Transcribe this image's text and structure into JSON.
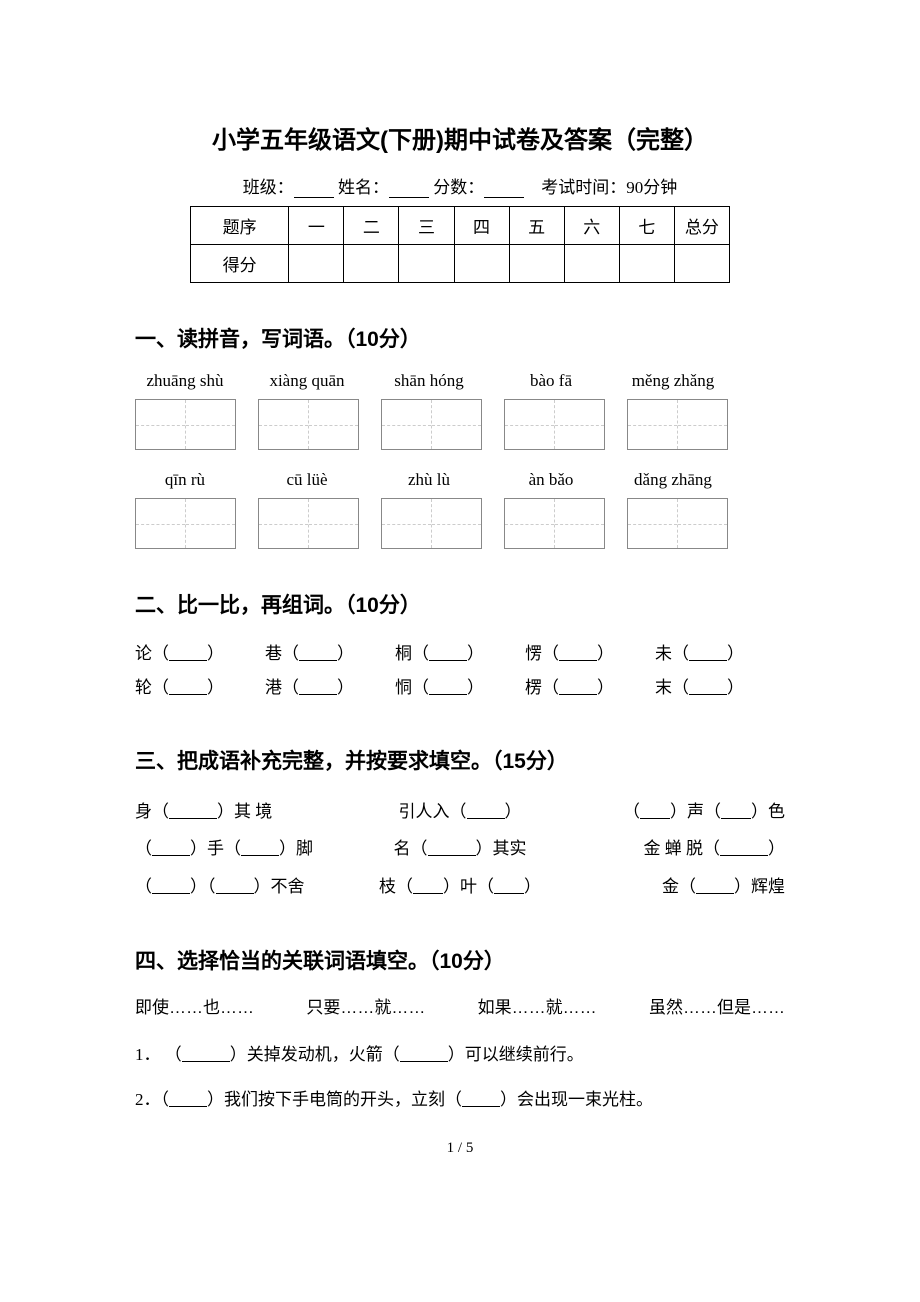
{
  "title": "小学五年级语文(下册)期中试卷及答案（完整）",
  "info": {
    "class_label": "班级：",
    "name_label": "姓名：",
    "score_label": "分数：",
    "time_label": "考试时间：90分钟"
  },
  "score_table": {
    "row1_label": "题序",
    "cols": [
      "一",
      "二",
      "三",
      "四",
      "五",
      "六",
      "七",
      "总分"
    ],
    "row2_label": "得分"
  },
  "section1": {
    "heading": "一、读拼音，写词语。（10分）",
    "row1_pinyin": [
      "zhuāng shù",
      "xiàng quān",
      "shān hóng",
      "bào fā",
      "měng zhǎng"
    ],
    "row2_pinyin": [
      "qīn rù",
      "cū lüè",
      "zhù lù",
      "àn bǎo",
      "dǎng zhāng"
    ]
  },
  "section2": {
    "heading": "二、比一比，再组词。（10分）",
    "pairs": [
      [
        "论",
        "巷",
        "桐",
        "愣",
        "未"
      ],
      [
        "轮",
        "港",
        "恫",
        "楞",
        "末"
      ]
    ]
  },
  "section3": {
    "heading": "三、把成语补充完整，并按要求填空。（15分）",
    "lines": [
      [
        {
          "pre": "身（",
          "blank": 48,
          "post": "）其 境"
        },
        {
          "pre": "引人入（",
          "blank": 38,
          "post": "）"
        },
        {
          "pre": "（",
          "blank": 30,
          "post": "）声（",
          "blank2": 30,
          "post2": "）色"
        }
      ],
      [
        {
          "pre": "（",
          "blank": 38,
          "post": "）手（",
          "blank2": 38,
          "post2": "）脚"
        },
        {
          "pre": "名（",
          "blank": 48,
          "post": "）其实"
        },
        {
          "pre": "金 蝉 脱（",
          "blank": 48,
          "post": "）"
        }
      ],
      [
        {
          "pre": "（",
          "blank": 38,
          "post": "）（",
          "blank2": 38,
          "post2": "）不舍"
        },
        {
          "pre": "枝（",
          "blank": 30,
          "post": "）叶（",
          "blank2": 30,
          "post2": "）"
        },
        {
          "pre": "金（",
          "blank": 38,
          "post": "）辉煌"
        }
      ]
    ]
  },
  "section4": {
    "heading": "四、选择恰当的关联词语填空。（10分）",
    "options": [
      "即使……也……",
      "只要……就……",
      "如果……就……",
      "虽然……但是……"
    ],
    "q1_num": "1．",
    "q1_pre": "（",
    "q1_mid1": "）关掉发动机，火箭（",
    "q1_mid2": "）可以继续前行。",
    "q2_num": "2．",
    "q2_pre": "（",
    "q2_mid1": "）我们按下手电筒的开头，立刻（",
    "q2_mid2": "）会出现一束光柱。"
  },
  "pagenum": "1 / 5"
}
